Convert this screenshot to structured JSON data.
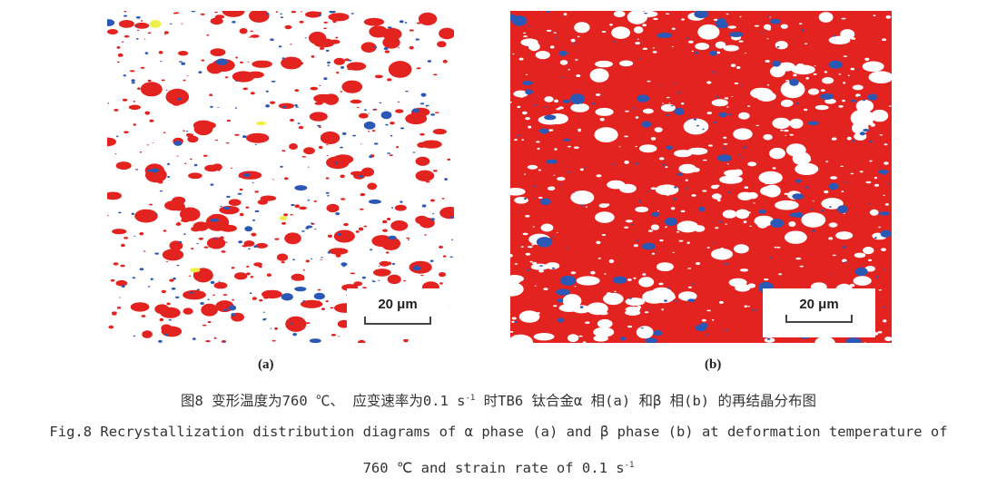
{
  "figure": {
    "panels": [
      {
        "label": "(a)",
        "scale_bar": "20 μm",
        "background": "#ffffff",
        "colors": {
          "red": "#e2231f",
          "blue": "#2b58b5",
          "yellow": "#eef04a"
        }
      },
      {
        "label": "(b)",
        "scale_bar": "20 μm",
        "background": "#e2231f",
        "colors": {
          "white": "#ffffff",
          "blue": "#2b58b5"
        }
      }
    ]
  },
  "caption": {
    "cn_before": "图8 变形温度为760 ℃、 应变速率为0.1 s",
    "cn_sup": "-1",
    "cn_after": " 时TB6 钛合金α 相(a) 和β 相(b) 的再结晶分布图",
    "en_line1": "Fig.8 Recrystallization distribution diagrams of α phase (a) and β phase (b) at deformation temperature of",
    "en_line2_before": "760 ℃ and strain rate of 0.1 s",
    "en_line2_sup": "-1"
  }
}
